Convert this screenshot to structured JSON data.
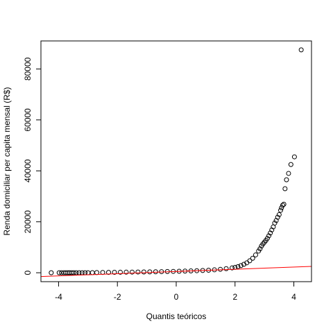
{
  "chart_data": {
    "type": "scatter",
    "title": "",
    "xlabel": "Quantis teóricos",
    "ylabel": "Renda domiciliar per capita mensal (R$)",
    "xlim": [
      -4.6,
      4.6
    ],
    "ylim": [
      -3500,
      91000
    ],
    "x_ticks": [
      -4,
      -2,
      0,
      2,
      4
    ],
    "y_ticks": [
      0,
      20000,
      40000,
      60000,
      80000
    ],
    "x_tick_labels": [
      "-4",
      "-2",
      "0",
      "2",
      "4"
    ],
    "y_tick_labels": [
      "0",
      "20000",
      "40000",
      "60000",
      "80000"
    ],
    "grid": false,
    "legend": "none",
    "colors": {
      "points": "#000000",
      "reference_line": "#ff0000"
    },
    "reference_line": {
      "x": [
        -4.6,
        4.6
      ],
      "y": [
        -1500,
        2500
      ]
    },
    "series": [
      {
        "x": [
          -4.25,
          -3.98,
          -3.9,
          -3.82,
          -3.75,
          -3.68,
          -3.62,
          -3.55,
          -3.48,
          -3.4,
          -3.3,
          -3.2,
          -3.1,
          -3.0,
          -2.85,
          -2.7,
          -2.5,
          -2.3,
          -2.1,
          -1.9,
          -1.7,
          -1.5,
          -1.3,
          -1.1,
          -0.9,
          -0.7,
          -0.5,
          -0.3,
          -0.1,
          0.1,
          0.3,
          0.5,
          0.7,
          0.9,
          1.1,
          1.3,
          1.5,
          1.7,
          1.9,
          2.0,
          2.1,
          2.2,
          2.3,
          2.4,
          2.5,
          2.6,
          2.7,
          2.8,
          2.85,
          2.9,
          2.95,
          3.0,
          3.05,
          3.1,
          3.15,
          3.2,
          3.25,
          3.3,
          3.35,
          3.4,
          3.45,
          3.5,
          3.55,
          3.58,
          3.62,
          3.66,
          3.7,
          3.75,
          3.82,
          3.9,
          4.02,
          4.25
        ],
        "y": [
          0,
          0,
          0,
          0,
          0,
          0,
          0,
          0,
          0,
          0,
          0,
          0,
          0,
          0,
          50,
          80,
          120,
          150,
          180,
          200,
          230,
          260,
          290,
          320,
          350,
          390,
          430,
          480,
          530,
          590,
          650,
          720,
          800,
          900,
          1000,
          1150,
          1350,
          1600,
          1900,
          2100,
          2400,
          2800,
          3300,
          3900,
          4700,
          5700,
          7000,
          8500,
          9400,
          10500,
          11300,
          12000,
          12700,
          13500,
          14500,
          15600,
          16800,
          18000,
          19500,
          20500,
          21800,
          22800,
          24500,
          25500,
          26500,
          26900,
          33000,
          36500,
          39000,
          42500,
          45500,
          87500
        ]
      }
    ]
  }
}
